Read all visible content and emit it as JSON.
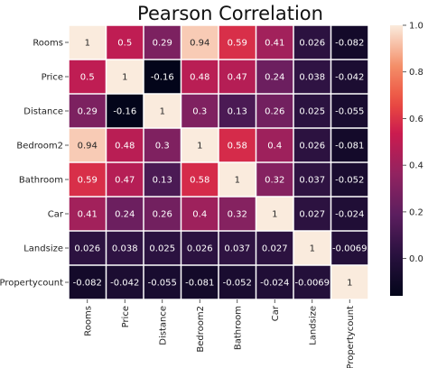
{
  "chart_data": {
    "type": "heatmap",
    "title": "Pearson Correlation",
    "xlabel": "",
    "ylabel": "",
    "rows": [
      "Rooms",
      "Price",
      "Distance",
      "Bedroom2",
      "Bathroom",
      "Car",
      "Landsize",
      "Propertycount"
    ],
    "columns": [
      "Rooms",
      "Price",
      "Distance",
      "Bedroom2",
      "Bathroom",
      "Car",
      "Landsize",
      "Propertycount"
    ],
    "values": [
      [
        1,
        0.5,
        0.29,
        0.94,
        0.59,
        0.41,
        0.026,
        -0.082
      ],
      [
        0.5,
        1,
        -0.16,
        0.48,
        0.47,
        0.24,
        0.038,
        -0.042
      ],
      [
        0.29,
        -0.16,
        1,
        0.3,
        0.13,
        0.26,
        0.025,
        -0.055
      ],
      [
        0.94,
        0.48,
        0.3,
        1,
        0.58,
        0.4,
        0.026,
        -0.081
      ],
      [
        0.59,
        0.47,
        0.13,
        0.58,
        1,
        0.32,
        0.037,
        -0.052
      ],
      [
        0.41,
        0.24,
        0.26,
        0.4,
        0.32,
        1,
        0.027,
        -0.024
      ],
      [
        0.026,
        0.038,
        0.025,
        0.026,
        0.037,
        0.027,
        1,
        -0.0069
      ],
      [
        -0.082,
        -0.042,
        -0.055,
        -0.081,
        -0.052,
        -0.024,
        -0.0069,
        1
      ]
    ],
    "cell_labels": [
      [
        "1",
        "0.5",
        "0.29",
        "0.94",
        "0.59",
        "0.41",
        "0.026",
        "-0.082"
      ],
      [
        "0.5",
        "1",
        "-0.16",
        "0.48",
        "0.47",
        "0.24",
        "0.038",
        "-0.042"
      ],
      [
        "0.29",
        "-0.16",
        "1",
        "0.3",
        "0.13",
        "0.26",
        "0.025",
        "-0.055"
      ],
      [
        "0.94",
        "0.48",
        "0.3",
        "1",
        "0.58",
        "0.4",
        "0.026",
        "-0.081"
      ],
      [
        "0.59",
        "0.47",
        "0.13",
        "0.58",
        "1",
        "0.32",
        "0.037",
        "-0.052"
      ],
      [
        "0.41",
        "0.24",
        "0.26",
        "0.4",
        "0.32",
        "1",
        "0.027",
        "-0.024"
      ],
      [
        "0.026",
        "0.038",
        "0.025",
        "0.026",
        "0.037",
        "0.027",
        "1",
        "-0.0069"
      ],
      [
        "-0.082",
        "-0.042",
        "-0.055",
        "-0.081",
        "-0.052",
        "-0.024",
        "-0.0069",
        "1"
      ]
    ],
    "colorscale": "rocket",
    "vmin": -0.16,
    "vmax": 1,
    "colorbar_ticks": [
      0.0,
      0.2,
      0.4,
      0.6,
      0.8,
      1.0
    ],
    "colorbar_tick_labels": [
      "0.0",
      "0.2",
      "0.4",
      "0.6",
      "0.8",
      "1.0"
    ],
    "grid_lines": "white",
    "legend": "colorbar-right"
  }
}
